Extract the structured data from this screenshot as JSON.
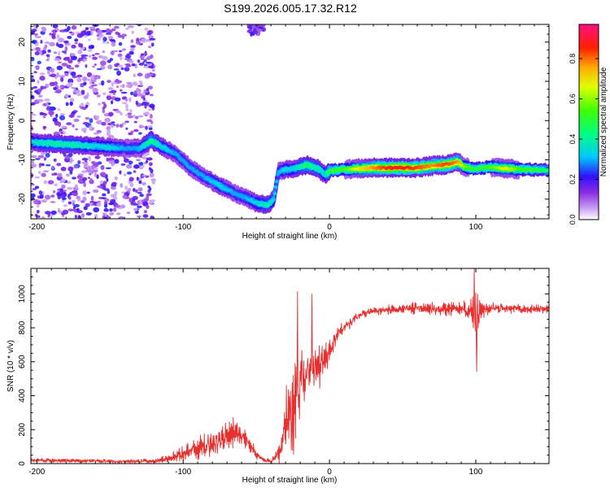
{
  "page_title": "S199.2026.005.17.32.R12",
  "chart_data": [
    {
      "type": "heatmap",
      "title": "S199.2026.005.17.32.R12",
      "xlabel": "Height of straight line (km)",
      "ylabel": "Frequency (Hz)",
      "xlim": [
        -204,
        150
      ],
      "ylim": [
        -25,
        24.5
      ],
      "x_ticks": [
        -200,
        -100,
        0,
        100
      ],
      "x_tick_labels": [
        "-200",
        "-100",
        "0",
        "100"
      ],
      "y_ticks": [
        20,
        10,
        0,
        -10,
        -20
      ],
      "y_tick_labels": [
        "20",
        "10",
        "0",
        "-10",
        "-20"
      ],
      "colorbar": {
        "label": "Normalized spectral amplitude",
        "range": [
          0.0,
          0.97
        ],
        "ticks": [
          0.0,
          0.2,
          0.4,
          0.6,
          0.8
        ],
        "tick_labels": [
          "0.0",
          "0.2",
          "0.4",
          "0.6",
          "0.8"
        ]
      },
      "ridge": {
        "x": [
          -204,
          -190,
          -175,
          -160,
          -150,
          -140,
          -130,
          -122,
          -115,
          -105,
          -95,
          -85,
          -75,
          -65,
          -58,
          -50,
          -42,
          -38,
          -35,
          -30,
          -25,
          -20,
          -15,
          -8,
          -3,
          0,
          10,
          20,
          30,
          40,
          50,
          60,
          70,
          80,
          88,
          92,
          100,
          110,
          120,
          130,
          140,
          150
        ],
        "y": [
          -5.5,
          -5.8,
          -6.2,
          -6.5,
          -6.8,
          -7.0,
          -7.2,
          -5.0,
          -6.5,
          -8.5,
          -12,
          -14.5,
          -16.5,
          -18.5,
          -19.5,
          -21,
          -21.5,
          -20,
          -13,
          -12.5,
          -12.3,
          -11.8,
          -11.3,
          -12.2,
          -13.8,
          -12.8,
          -12.4,
          -12.2,
          -12.0,
          -12.0,
          -12.0,
          -12.0,
          -11.5,
          -11.2,
          -10.5,
          -11.8,
          -12.3,
          -11.8,
          -12.2,
          -12.4,
          -12.5,
          -12.6
        ],
        "peak_amplitude": [
          0.35,
          0.4,
          0.4,
          0.35,
          0.35,
          0.3,
          0.3,
          0.45,
          0.35,
          0.3,
          0.3,
          0.3,
          0.35,
          0.3,
          0.3,
          0.35,
          0.4,
          0.35,
          0.3,
          0.35,
          0.35,
          0.4,
          0.45,
          0.4,
          0.35,
          0.5,
          0.55,
          0.7,
          0.8,
          0.88,
          0.9,
          0.85,
          0.8,
          0.86,
          0.8,
          0.6,
          0.5,
          0.55,
          0.7,
          0.55,
          0.5,
          0.45
        ]
      },
      "background_scatter": [
        {
          "x_range": [
            -204,
            -120
          ],
          "y_range": [
            -25,
            24.5
          ],
          "amplitude_range": [
            0.05,
            0.25
          ]
        },
        {
          "x_range": [
            -55,
            -45
          ],
          "y_range": [
            22,
            24.5
          ],
          "amplitude_range": [
            0.1,
            0.25
          ]
        }
      ]
    },
    {
      "type": "line",
      "xlabel": "Height of straight line (km)",
      "ylabel": "SNR (10 * v/v)",
      "xlim": [
        -204,
        150
      ],
      "ylim": [
        0,
        1150
      ],
      "x_ticks": [
        -200,
        -100,
        0,
        100
      ],
      "x_tick_labels": [
        "-200",
        "-100",
        "0",
        "100"
      ],
      "y_ticks": [
        0,
        200,
        400,
        600,
        800,
        1000
      ],
      "y_tick_labels": [
        "0",
        "200",
        "400",
        "600",
        "800",
        "1000"
      ],
      "line_color": "#e83030",
      "envelope": {
        "x": [
          -204,
          -180,
          -160,
          -140,
          -120,
          -110,
          -100,
          -90,
          -80,
          -72,
          -65,
          -58,
          -52,
          -48,
          -44,
          -40,
          -36,
          -32,
          -28,
          -25,
          -22,
          -18,
          -14,
          -10,
          -6,
          -2,
          2,
          6,
          10,
          14,
          18,
          22,
          26,
          30,
          40,
          50,
          60,
          70,
          80,
          90,
          96,
          100,
          104,
          110,
          120,
          130,
          140,
          150
        ],
        "center": [
          20,
          18,
          15,
          12,
          15,
          30,
          60,
          90,
          110,
          150,
          170,
          150,
          80,
          40,
          20,
          15,
          40,
          150,
          300,
          350,
          420,
          500,
          550,
          560,
          580,
          620,
          700,
          770,
          800,
          830,
          860,
          880,
          890,
          900,
          905,
          910,
          915,
          910,
          915,
          915,
          900,
          860,
          905,
          915,
          915,
          915,
          910,
          910
        ],
        "noise": [
          10,
          12,
          10,
          10,
          12,
          20,
          40,
          55,
          70,
          90,
          80,
          60,
          35,
          20,
          15,
          15,
          35,
          120,
          180,
          250,
          220,
          180,
          150,
          110,
          100,
          80,
          60,
          40,
          35,
          30,
          25,
          20,
          20,
          20,
          25,
          25,
          30,
          35,
          35,
          40,
          55,
          150,
          45,
          30,
          25,
          25,
          25,
          25
        ]
      },
      "spikes": [
        {
          "x": -22,
          "y": 1015
        },
        {
          "x": -12,
          "y": 1000
        },
        {
          "x": -26,
          "y": 80
        },
        {
          "x": 99,
          "y": 1150
        },
        {
          "x": 100.5,
          "y": 540
        }
      ]
    }
  ]
}
